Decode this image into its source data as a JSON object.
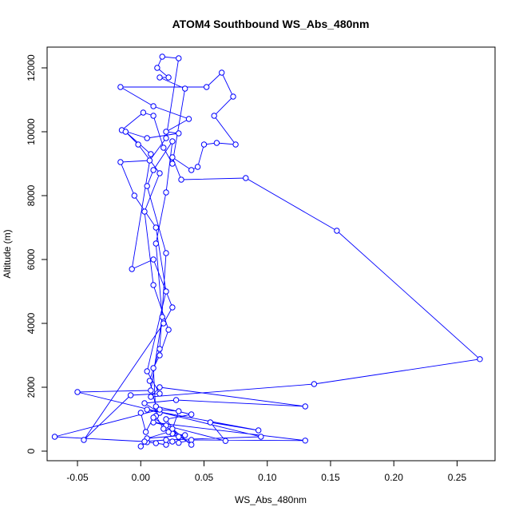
{
  "chart_data": {
    "type": "scatter",
    "title": "ATOM4 Southbound WS_Abs_480nm",
    "xlabel": "WS_Abs_480nm",
    "ylabel": "Altitude (m)",
    "xlim": [
      -0.074,
      0.28
    ],
    "ylim": [
      -300,
      12650
    ],
    "xticks": [
      -0.05,
      0.0,
      0.05,
      0.1,
      0.15,
      0.2,
      0.25
    ],
    "xtick_labels": [
      "-0.05",
      "0.00",
      "0.05",
      "0.10",
      "0.15",
      "0.20",
      "0.25"
    ],
    "yticks": [
      0,
      2000,
      4000,
      6000,
      8000,
      10000,
      12000
    ],
    "ytick_labels": [
      "0",
      "2000",
      "4000",
      "6000",
      "8000",
      "10000",
      "12000"
    ],
    "grid": false,
    "legend": "none",
    "colors": {
      "series": "#0000ff",
      "axis": "#000000",
      "background": "#ffffff"
    },
    "series": [
      {
        "marker": "open-circle",
        "connected": true,
        "points": [
          [
            0.0,
            150
          ],
          [
            0.005,
            280
          ],
          [
            0.012,
            250
          ],
          [
            0.02,
            200
          ],
          [
            0.025,
            300
          ],
          [
            0.03,
            260
          ],
          [
            0.04,
            350
          ],
          [
            0.13,
            330
          ],
          [
            0.01,
            900
          ],
          [
            0.02,
            800
          ],
          [
            0.067,
            320
          ],
          [
            0.055,
            900
          ],
          [
            0.093,
            650
          ],
          [
            0.005,
            1300
          ],
          [
            0.015,
            1200
          ],
          [
            0.003,
            1500
          ],
          [
            0.028,
            1600
          ],
          [
            0.13,
            1400
          ],
          [
            0.015,
            2000
          ],
          [
            0.008,
            1700
          ],
          [
            0.137,
            2100
          ],
          [
            0.268,
            2880
          ],
          [
            0.155,
            6900
          ],
          [
            0.083,
            8550
          ],
          [
            0.032,
            8500
          ],
          [
            0.025,
            9200
          ],
          [
            0.04,
            8800
          ],
          [
            0.045,
            8900
          ],
          [
            0.05,
            9600
          ],
          [
            0.06,
            9650
          ],
          [
            0.075,
            9600
          ],
          [
            0.058,
            10500
          ],
          [
            0.073,
            11100
          ],
          [
            0.064,
            11850
          ],
          [
            0.052,
            11400
          ],
          [
            -0.016,
            11400
          ],
          [
            0.01,
            10800
          ],
          [
            0.038,
            10400
          ],
          [
            0.02,
            10000
          ],
          [
            0.03,
            9950
          ],
          [
            0.005,
            9800
          ],
          [
            -0.015,
            10050
          ],
          [
            0.002,
            10600
          ],
          [
            0.01,
            10500
          ],
          [
            0.018,
            9500
          ],
          [
            0.025,
            9000
          ],
          [
            0.035,
            11350
          ],
          [
            0.015,
            11700
          ],
          [
            0.022,
            11700
          ],
          [
            0.013,
            12000
          ],
          [
            0.017,
            12350
          ],
          [
            0.03,
            12300
          ],
          [
            0.02,
            9800
          ],
          [
            0.007,
            9100
          ],
          [
            -0.016,
            9050
          ],
          [
            -0.005,
            8000
          ],
          [
            0.012,
            7000
          ],
          [
            0.02,
            5000
          ],
          [
            0.005,
            2500
          ],
          [
            0.015,
            1800
          ],
          [
            -0.008,
            1750
          ],
          [
            -0.045,
            350
          ],
          [
            0.018,
            4000
          ],
          [
            0.025,
            4500
          ],
          [
            0.01,
            6000
          ],
          [
            -0.007,
            5700
          ],
          [
            0.008,
            9300
          ],
          [
            -0.012,
            10000
          ],
          [
            -0.002,
            9600
          ],
          [
            0.015,
            8700
          ],
          [
            0.003,
            7500
          ],
          [
            0.01,
            5200
          ],
          [
            0.022,
            3800
          ],
          [
            0.015,
            3000
          ],
          [
            0.01,
            2600
          ],
          [
            0.012,
            1100
          ],
          [
            0.018,
            700
          ],
          [
            0.025,
            550
          ],
          [
            0.035,
            500
          ],
          [
            0.005,
            400
          ],
          [
            0.022,
            600
          ],
          [
            0.03,
            450
          ],
          [
            0.02,
            1000
          ],
          [
            0.04,
            1150
          ],
          [
            0.012,
            1400
          ],
          [
            0.007,
            2200
          ],
          [
            0.015,
            3200
          ],
          [
            0.02,
            6200
          ],
          [
            0.005,
            8300
          ],
          [
            0.01,
            8800
          ],
          [
            0.025,
            9700
          ],
          [
            0.02,
            8100
          ],
          [
            0.012,
            6500
          ],
          [
            0.017,
            4200
          ],
          [
            0.008,
            1900
          ],
          [
            -0.05,
            1850
          ],
          [
            0.095,
            450
          ],
          [
            0.02,
            350
          ],
          [
            0.003,
            300
          ],
          [
            -0.068,
            450
          ],
          [
            0.015,
            1300
          ],
          [
            0.03,
            1250
          ],
          [
            0.025,
            700
          ],
          [
            0.04,
            200
          ],
          [
            0.01,
            1050
          ],
          [
            0.004,
            600
          ],
          [
            0.0,
            1200
          ]
        ]
      }
    ]
  }
}
